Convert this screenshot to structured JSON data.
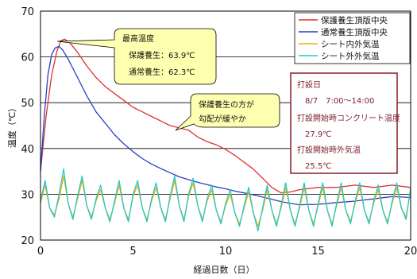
{
  "chart_data": {
    "type": "line",
    "xlabel": "経過日数（日）",
    "ylabel": "温度（℃）",
    "xlim": [
      0,
      20
    ],
    "ylim": [
      20,
      70
    ],
    "x_ticks": [
      "0",
      "5",
      "10",
      "15",
      "20"
    ],
    "y_ticks": [
      "20",
      "30",
      "40",
      "50",
      "60",
      "70"
    ],
    "grid": "horizontal",
    "legend_position": "top-right",
    "series": [
      {
        "name": "保護養生頂版中央",
        "color": "#e03030",
        "x": [
          0,
          0.3,
          0.6,
          0.9,
          1.1,
          1.3,
          1.6,
          2,
          2.5,
          3,
          3.5,
          4,
          4.5,
          5,
          5.5,
          6,
          6.5,
          7,
          7.5,
          8,
          8.5,
          9,
          9.5,
          10,
          10.5,
          11,
          11.5,
          12,
          12.5,
          13,
          13.5,
          14,
          15,
          16,
          17,
          18,
          19,
          20
        ],
        "y": [
          35,
          47,
          56,
          61.5,
          63.5,
          63.9,
          63,
          61,
          58,
          55.5,
          53.5,
          52,
          50.5,
          49,
          48,
          47,
          46,
          45,
          44.5,
          44,
          42.5,
          41.5,
          40.8,
          39.8,
          38.5,
          37,
          35.5,
          33.5,
          31.5,
          30.3,
          30.5,
          31,
          31.5,
          31.5,
          32,
          31.5,
          32,
          31.5
        ]
      },
      {
        "name": "通常養生頂版中央",
        "color": "#2a3fc4",
        "x": [
          0,
          0.2,
          0.4,
          0.6,
          0.8,
          1,
          1.2,
          1.5,
          2,
          2.5,
          3,
          3.5,
          4,
          4.5,
          5,
          5.5,
          6,
          6.5,
          7,
          7.5,
          8,
          8.5,
          9,
          9.5,
          10,
          10.5,
          11,
          11.5,
          12,
          12.5,
          13,
          13.5,
          14,
          15,
          16,
          17,
          18,
          19,
          20
        ],
        "y": [
          35,
          47,
          56,
          60.5,
          62,
          62.3,
          61.5,
          59.5,
          55.5,
          51.5,
          48,
          45.5,
          43,
          41,
          39.3,
          37.8,
          36.6,
          35.6,
          34.7,
          33.8,
          33.2,
          32.6,
          32.1,
          31.6,
          31.2,
          30.7,
          30.3,
          29.9,
          29.4,
          28.9,
          28.4,
          28,
          27.7,
          27.8,
          28.2,
          28.5,
          29,
          29.5,
          29.3
        ]
      },
      {
        "name": "シート内外気温",
        "color": "#f0b000",
        "x": [
          0,
          0.25,
          0.5,
          0.75,
          1,
          1.25,
          1.5,
          1.75,
          2,
          2.25,
          2.5,
          2.75,
          3,
          3.25,
          3.5,
          3.75,
          4,
          4.25,
          4.5,
          4.75,
          5,
          5.25,
          5.5,
          5.75,
          6,
          6.25,
          6.5,
          6.75,
          7,
          7.25,
          7.5,
          7.75,
          8,
          8.25,
          8.5,
          8.75,
          9,
          9.25,
          9.5,
          9.75,
          10,
          10.25,
          10.5,
          10.75,
          11,
          11.25,
          11.5,
          11.75,
          12,
          12.25,
          12.5,
          12.75,
          13,
          13.25,
          13.5,
          13.75,
          14,
          14.25,
          14.5,
          14.75,
          15,
          15.25,
          15.5,
          15.75,
          16,
          16.25,
          16.5,
          16.75,
          17,
          17.25,
          17.5,
          17.75,
          18,
          18.25,
          18.5,
          18.75,
          19,
          19.25,
          19.5,
          19.75,
          20
        ],
        "y": [
          28,
          32,
          27,
          25.5,
          29,
          34,
          28,
          25,
          29,
          33,
          27.5,
          25,
          28.5,
          31,
          27,
          24.5,
          28,
          32,
          27,
          24.5,
          29.5,
          32,
          27,
          24.5,
          28.5,
          31.5,
          27,
          24.5,
          29,
          33,
          27.5,
          24.5,
          29.5,
          32.5,
          27.5,
          24.5,
          28.5,
          31,
          26.5,
          24,
          27.5,
          30,
          26,
          23.5,
          27,
          30.5,
          26,
          23,
          26.5,
          31,
          26.5,
          23.5,
          27,
          31.5,
          26.5,
          23.5,
          27,
          31.5,
          26.5,
          23.5,
          27.5,
          31.5,
          26.5,
          23.5,
          27.5,
          31.5,
          26.5,
          24,
          28,
          31.5,
          26.5,
          24,
          28,
          31,
          26.5,
          24,
          28,
          31.5,
          27,
          25,
          31
        ]
      },
      {
        "name": "シート外外気温",
        "color": "#22c8cc",
        "x": [
          0,
          0.25,
          0.5,
          0.75,
          1,
          1.25,
          1.5,
          1.75,
          2,
          2.25,
          2.5,
          2.75,
          3,
          3.25,
          3.5,
          3.75,
          4,
          4.25,
          4.5,
          4.75,
          5,
          5.25,
          5.5,
          5.75,
          6,
          6.25,
          6.5,
          6.75,
          7,
          7.25,
          7.5,
          7.75,
          8,
          8.25,
          8.5,
          8.75,
          9,
          9.25,
          9.5,
          9.75,
          10,
          10.25,
          10.5,
          10.75,
          11,
          11.25,
          11.5,
          11.75,
          12,
          12.25,
          12.5,
          12.75,
          13,
          13.25,
          13.5,
          13.75,
          14,
          14.25,
          14.5,
          14.75,
          15,
          15.25,
          15.5,
          15.75,
          16,
          16.25,
          16.5,
          16.75,
          17,
          17.25,
          17.5,
          17.75,
          18,
          18.25,
          18.5,
          18.75,
          19,
          19.25,
          19.5,
          19.75,
          20
        ],
        "y": [
          28.5,
          33,
          27,
          25,
          30,
          35.5,
          28,
          24.5,
          29.5,
          34,
          27.5,
          24.5,
          29,
          32,
          27,
          24,
          28.5,
          33,
          27,
          24,
          30,
          33,
          27,
          24,
          29,
          32.5,
          27,
          24,
          29.5,
          34,
          27.5,
          24,
          30,
          33.5,
          27.5,
          24,
          29,
          32,
          26.5,
          23.5,
          28,
          31,
          26,
          23,
          27.5,
          31.5,
          26,
          22,
          27,
          32,
          26.5,
          23,
          27.5,
          32.5,
          26.5,
          23,
          27.5,
          32.5,
          26.5,
          23,
          28,
          32.5,
          26.5,
          23,
          28,
          32.5,
          26.5,
          23.5,
          28.5,
          32.5,
          26.5,
          23.5,
          28.5,
          32,
          26.5,
          23.5,
          28.5,
          32.5,
          27,
          24.5,
          31.5
        ]
      }
    ]
  },
  "annotations": {
    "peak_callout": {
      "title": "最高温度",
      "line1": "保護養生：63.9℃",
      "line2": "通常養生：62.3℃"
    },
    "slope_callout": {
      "line1": "保護養生の方が",
      "line2": "勾配が緩やか"
    },
    "info_box": {
      "title": "打設日",
      "date": "8/7　7:00～14:00",
      "concrete_label": "打設開始時コンクリート温度",
      "concrete_value": "27.9℃",
      "air_label": "打設開始時外気温",
      "air_value": "25.5℃"
    }
  },
  "colors": {
    "grid": "#000000",
    "callout_fill": "#ffffb0",
    "info_border": "#8b1a2b"
  }
}
